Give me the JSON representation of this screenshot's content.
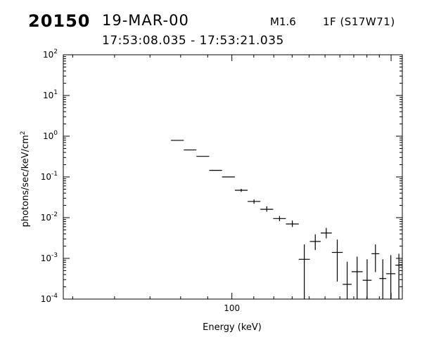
{
  "header": {
    "event_id": "20150",
    "date": "19-MAR-00",
    "goes_class": "M1.6",
    "location": "1F (S17W71)",
    "time_range": "17:53:08.035 - 17:53:21.035"
  },
  "chart_data": {
    "type": "scatter",
    "xlabel": "Energy (keV)",
    "ylabel": "photons/sec/keV/cm",
    "ylabel_superscript": "2",
    "x_scale": "log",
    "y_scale": "log",
    "xlim": [
      48,
      210
    ],
    "ylim": [
      0.0001,
      100
    ],
    "x_ticks": [
      {
        "value": 100,
        "label": "100"
      }
    ],
    "y_ticks": [
      {
        "value": 0.0001,
        "base": "10",
        "exp": "-4"
      },
      {
        "value": 0.001,
        "base": "10",
        "exp": "-3"
      },
      {
        "value": 0.01,
        "base": "10",
        "exp": "-2"
      },
      {
        "value": 0.1,
        "base": "10",
        "exp": "-1"
      },
      {
        "value": 1,
        "base": "10",
        "exp": "0"
      },
      {
        "value": 10,
        "base": "10",
        "exp": "1"
      },
      {
        "value": 100,
        "base": "10",
        "exp": "2"
      }
    ],
    "grid": false,
    "legend": "none",
    "points": [
      {
        "x_lo": 76.7,
        "x_hi": 81.1,
        "y": 0.79,
        "y_lo": 0.79,
        "y_hi": 0.79
      },
      {
        "x_lo": 81.1,
        "x_hi": 85.7,
        "y": 0.46,
        "y_lo": 0.46,
        "y_hi": 0.46
      },
      {
        "x_lo": 85.7,
        "x_hi": 90.6,
        "y": 0.32,
        "y_lo": 0.32,
        "y_hi": 0.32
      },
      {
        "x_lo": 90.6,
        "x_hi": 95.8,
        "y": 0.145,
        "y_lo": 0.145,
        "y_hi": 0.145
      },
      {
        "x_lo": 95.8,
        "x_hi": 101.3,
        "y": 0.1,
        "y_lo": 0.1,
        "y_hi": 0.1
      },
      {
        "x_lo": 101.3,
        "x_hi": 107.1,
        "y": 0.047,
        "y_lo": 0.043,
        "y_hi": 0.051
      },
      {
        "x_lo": 107.1,
        "x_hi": 113.2,
        "y": 0.025,
        "y_lo": 0.022,
        "y_hi": 0.028
      },
      {
        "x_lo": 113.2,
        "x_hi": 119.7,
        "y": 0.016,
        "y_lo": 0.014,
        "y_hi": 0.019
      },
      {
        "x_lo": 119.7,
        "x_hi": 126.5,
        "y": 0.0095,
        "y_lo": 0.0082,
        "y_hi": 0.011
      },
      {
        "x_lo": 126.5,
        "x_hi": 133.8,
        "y": 0.007,
        "y_lo": 0.0059,
        "y_hi": 0.0085
      },
      {
        "x_lo": 133.8,
        "x_hi": 140.4,
        "y": 0.00095,
        "y_lo": 0.0001,
        "y_hi": 0.0022
      },
      {
        "x_lo": 140.4,
        "x_hi": 147.2,
        "y": 0.0026,
        "y_lo": 0.0016,
        "y_hi": 0.0039
      },
      {
        "x_lo": 147.2,
        "x_hi": 154.5,
        "y": 0.0042,
        "y_lo": 0.0031,
        "y_hi": 0.0056
      },
      {
        "x_lo": 154.5,
        "x_hi": 162,
        "y": 0.0014,
        "y_lo": 0.00027,
        "y_hi": 0.0029
      },
      {
        "x_lo": 162,
        "x_hi": 168.4,
        "y": 0.00023,
        "y_lo": 0.0001,
        "y_hi": 0.00083
      },
      {
        "x_lo": 168.4,
        "x_hi": 176.7,
        "y": 0.00047,
        "y_lo": 0.0001,
        "y_hi": 0.0011
      },
      {
        "x_lo": 176.7,
        "x_hi": 183.7,
        "y": 0.00029,
        "y_lo": 0.0001,
        "y_hi": 0.00095
      },
      {
        "x_lo": 183.7,
        "x_hi": 190,
        "y": 0.0013,
        "y_lo": 0.00046,
        "y_hi": 0.0022
      },
      {
        "x_lo": 190,
        "x_hi": 195.8,
        "y": 0.00032,
        "y_lo": 0.0001,
        "y_hi": 0.00095
      },
      {
        "x_lo": 195.8,
        "x_hi": 203.8,
        "y": 0.00042,
        "y_lo": 0.0001,
        "y_hi": 0.0012
      },
      {
        "x_lo": 203.8,
        "x_hi": 210,
        "y": 0.00068,
        "y_lo": 0.0001,
        "y_hi": 0.0013
      }
    ]
  }
}
